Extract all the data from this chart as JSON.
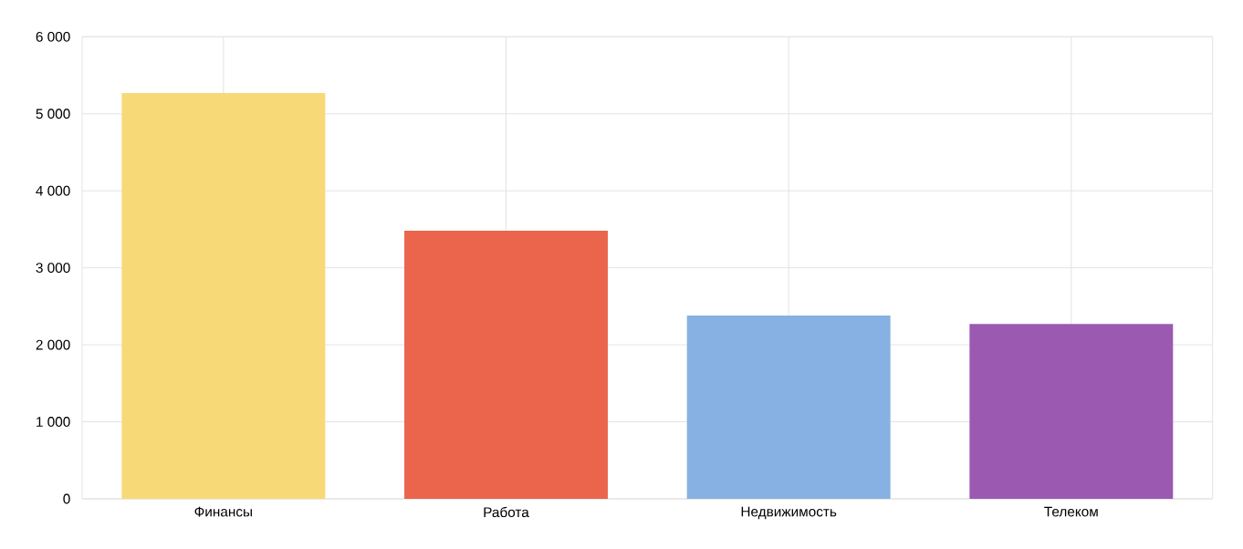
{
  "chart_data": {
    "type": "bar",
    "categories": [
      "Финансы",
      "Работа",
      "Недвижимость",
      "Телеком"
    ],
    "values": [
      5270,
      3480,
      2380,
      2270
    ],
    "colors": [
      "#f8d978",
      "#ea654c",
      "#86b1e2",
      "#9c59b2"
    ],
    "ylim": [
      0,
      6000
    ],
    "yticks": [
      0,
      {
        "value": 1000,
        "label": "1 000"
      },
      {
        "value": 2000,
        "label": "2 000"
      },
      {
        "value": 3000,
        "label": "3 000"
      },
      {
        "value": 4000,
        "label": "4 000"
      },
      {
        "value": 5000,
        "label": "5 000"
      },
      {
        "value": 6000,
        "label": "6 000"
      }
    ],
    "grid": true
  }
}
